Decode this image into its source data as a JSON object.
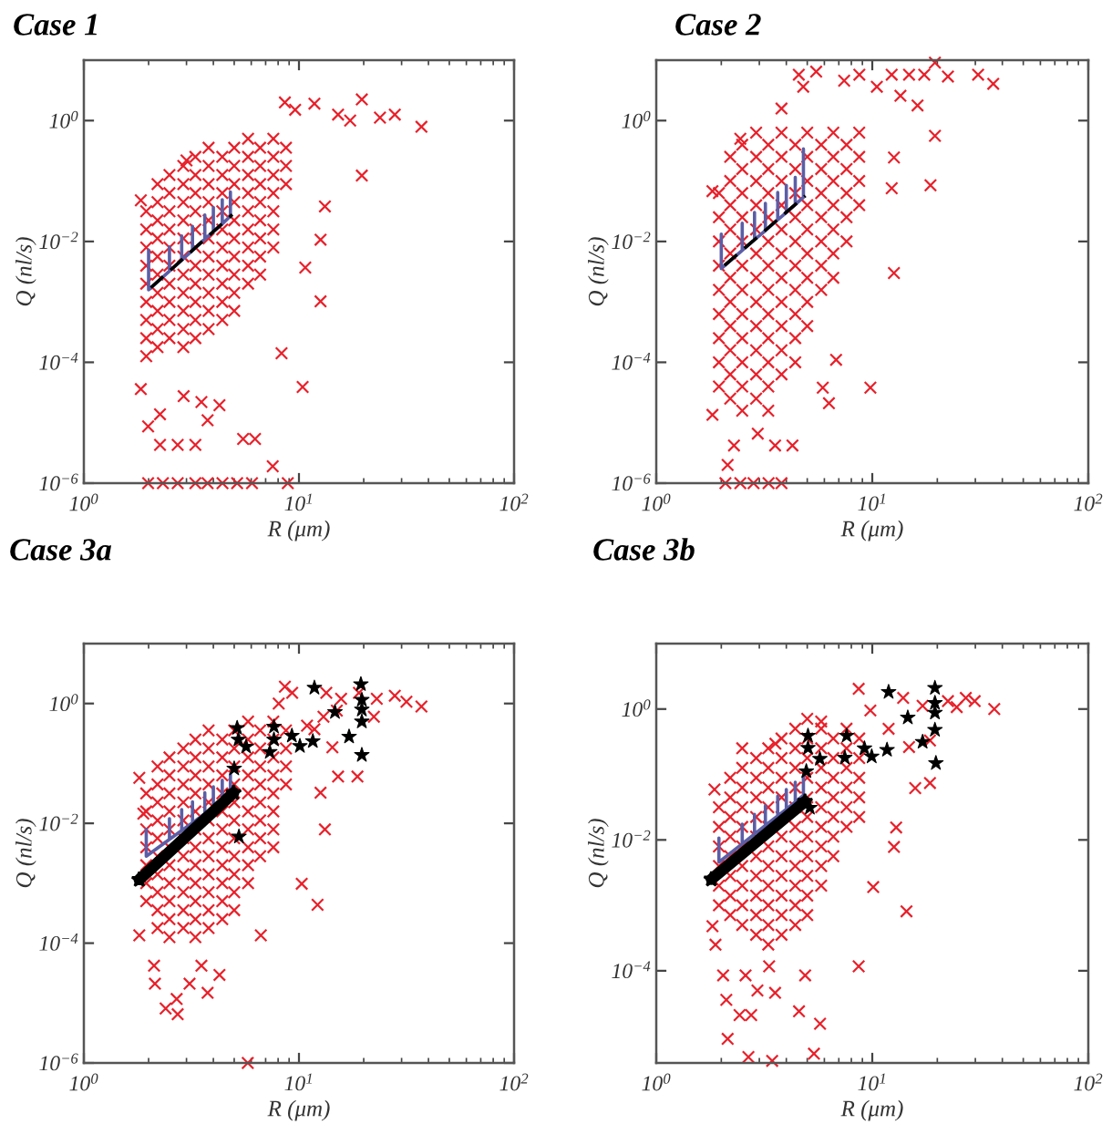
{
  "chart_data": [
    {
      "type": "scatter",
      "title": "Case 1",
      "xlabel": "R (μm)",
      "ylabel": "Q (nl/s)",
      "log": "xy",
      "xlim": [
        1,
        100
      ],
      "ylim": [
        1e-06,
        10
      ],
      "xticks": [
        {
          "value": 1,
          "label": "10$^{0}$"
        },
        {
          "value": 10,
          "label": "10$^{1}$"
        },
        {
          "value": 100,
          "label": "10$^{2}$"
        }
      ],
      "yticks": [
        {
          "value": 1e-06,
          "label": "10$^{−6}$"
        },
        {
          "value": 0.0001,
          "label": "10$^{−4}$"
        },
        {
          "value": 0.01,
          "label": "10$^{−2}$"
        },
        {
          "value": 1,
          "label": "10$^{0}$"
        }
      ],
      "series": [
        {
          "type": "scatter",
          "color": "#e8202a",
          "marker": "cross",
          "x": [
            1.95,
            1.95,
            1.95,
            1.95,
            1.95,
            1.95,
            1.95,
            1.95,
            1.95,
            2.2,
            2.2,
            2.2,
            2.2,
            2.2,
            2.2,
            2.2,
            2.2,
            2.2,
            2.2,
            2.5,
            2.5,
            2.5,
            2.5,
            2.5,
            2.5,
            2.5,
            2.5,
            2.5,
            2.5,
            2.9,
            2.9,
            2.9,
            2.9,
            2.9,
            2.9,
            2.9,
            2.9,
            2.9,
            2.9,
            2.9,
            3.3,
            3.3,
            3.3,
            3.3,
            3.3,
            3.3,
            3.3,
            3.3,
            3.3,
            3.3,
            3.3,
            3.8,
            3.8,
            3.8,
            3.8,
            3.8,
            3.8,
            3.8,
            3.8,
            3.8,
            3.8,
            3.8,
            4.4,
            4.4,
            4.4,
            4.4,
            4.4,
            4.4,
            4.4,
            4.4,
            4.4,
            4.4,
            5.0,
            5.0,
            5.0,
            5.0,
            5.0,
            5.0,
            5.0,
            5.0,
            5.0,
            5.0,
            5.8,
            5.8,
            5.8,
            5.8,
            5.8,
            5.8,
            5.8,
            5.8,
            5.8,
            6.6,
            6.6,
            6.6,
            6.6,
            6.6,
            6.6,
            6.6,
            6.6,
            7.6,
            7.6,
            7.6,
            7.6,
            7.6,
            7.6,
            7.6,
            8.7,
            8.7,
            8.7,
            8.6,
            9.6,
            11.8,
            19.6,
            23.8,
            27.9,
            37.1,
            15.2,
            17.3,
            19.6,
            13.2,
            12.6,
            10.7,
            12.6,
            10.4,
            8.3,
            6.25,
            7.55,
            1.84,
            3.0,
            1.84,
            1.99,
            2.26,
            2.73,
            3.3,
            3.52,
            4.27,
            5.5,
            3.76,
            2.91,
            2.26,
            1.99,
            2.33,
            2.73,
            3.3,
            3.76,
            4.41,
            5.16,
            6.05,
            8.87
          ],
          "values": [
            0.0316,
            0.0158,
            0.00794,
            0.00398,
            0.002,
            0.001,
            0.000501,
            0.000251,
            0.000126,
            0.0891,
            0.0447,
            0.0224,
            0.0112,
            0.00562,
            0.00282,
            0.00141,
            0.000708,
            0.000355,
            0.000178,
            0.126,
            0.0631,
            0.0316,
            0.0158,
            0.00794,
            0.00398,
            0.002,
            0.001,
            0.000501,
            0.000251,
            0.178,
            0.0891,
            0.0447,
            0.0224,
            0.0112,
            0.00562,
            0.00282,
            0.00141,
            0.000708,
            0.000355,
            0.000178,
            0.251,
            0.126,
            0.0631,
            0.0316,
            0.0158,
            0.00794,
            0.00398,
            0.002,
            0.001,
            0.000501,
            0.000251,
            0.355,
            0.178,
            0.0891,
            0.0447,
            0.0224,
            0.0112,
            0.00562,
            0.00282,
            0.00141,
            0.000708,
            0.000355,
            0.251,
            0.126,
            0.0631,
            0.0316,
            0.0158,
            0.00794,
            0.00398,
            0.002,
            0.001,
            0.000501,
            0.355,
            0.178,
            0.0891,
            0.0447,
            0.0224,
            0.0112,
            0.00562,
            0.00282,
            0.00141,
            0.000708,
            0.501,
            0.251,
            0.126,
            0.0631,
            0.0316,
            0.0158,
            0.00794,
            0.00398,
            0.002,
            0.355,
            0.178,
            0.0891,
            0.0447,
            0.0224,
            0.0112,
            0.00562,
            0.00282,
            0.501,
            0.251,
            0.126,
            0.0631,
            0.0316,
            0.0158,
            0.00794,
            0.355,
            0.178,
            0.0891,
            2.0,
            1.51,
            1.91,
            2.24,
            1.12,
            1.26,
            0.79,
            1.26,
            1.0,
            0.123,
            0.038,
            0.0107,
            0.0037,
            0.00102,
            3.9e-05,
            0.000141,
            5.4e-06,
            1.9e-06,
            0.048,
            0.219,
            3.6e-05,
            8.7e-06,
            4.3e-06,
            4.3e-06,
            4.3e-06,
            2.2e-05,
            1.95e-05,
            5.4e-06,
            1.1e-05,
            2.75e-05,
            1.38e-05,
            1e-06,
            1e-06,
            1e-06,
            1e-06,
            1e-06,
            1e-06,
            1e-06,
            1e-06,
            1e-06
          ]
        },
        {
          "type": "line",
          "color": "#5b5ea6",
          "line_style": "solid",
          "x": [
            2.0,
            2.0,
            2.5,
            2.5,
            2.5,
            2.85,
            2.85,
            2.85,
            3.2,
            3.2,
            3.2,
            3.65,
            3.65,
            3.65,
            4.0,
            4.0,
            4.0,
            4.4,
            4.4,
            4.4,
            4.8,
            4.8
          ],
          "values": [
            0.0072,
            0.00158,
            0.00324,
            0.0081,
            0.00324,
            0.0049,
            0.0123,
            0.0049,
            0.0071,
            0.0178,
            0.0071,
            0.011,
            0.0275,
            0.011,
            0.0145,
            0.0363,
            0.0145,
            0.0195,
            0.049,
            0.0195,
            0.0263,
            0.066
          ]
        },
        {
          "type": "line",
          "color": "#000000",
          "line_style": "dashed",
          "x": [
            2.05,
            4.9
          ],
          "values": [
            0.00172,
            0.0279
          ]
        }
      ]
    },
    {
      "type": "scatter",
      "title": "Case 2",
      "xlabel": "R (μm)",
      "ylabel": "Q (nl/s)",
      "log": "xy",
      "xlim": [
        1,
        100
      ],
      "ylim": [
        1e-06,
        10
      ],
      "xticks": [
        {
          "value": 1,
          "label": "10$^{0}$"
        },
        {
          "value": 10,
          "label": "10$^{1}$"
        },
        {
          "value": 100,
          "label": "10$^{2}$"
        }
      ],
      "yticks": [
        {
          "value": 1e-06,
          "label": "10$^{−6}$"
        },
        {
          "value": 0.0001,
          "label": "10$^{−4}$"
        },
        {
          "value": 0.01,
          "label": "10$^{−2}$"
        },
        {
          "value": 1,
          "label": "10$^{0}$"
        }
      ],
      "series": [
        {
          "type": "scatter",
          "color": "#e8202a",
          "marker": "cross",
          "x": [
            1.95,
            1.95,
            1.95,
            1.95,
            1.95,
            1.95,
            1.95,
            1.95,
            1.95,
            2.2,
            2.2,
            2.2,
            2.2,
            2.2,
            2.2,
            2.2,
            2.2,
            2.2,
            2.2,
            2.2,
            2.5,
            2.5,
            2.5,
            2.5,
            2.5,
            2.5,
            2.5,
            2.5,
            2.5,
            2.5,
            2.5,
            2.5,
            2.9,
            2.9,
            2.9,
            2.9,
            2.9,
            2.9,
            2.9,
            2.9,
            2.9,
            2.9,
            2.9,
            2.9,
            3.3,
            3.3,
            3.3,
            3.3,
            3.3,
            3.3,
            3.3,
            3.3,
            3.3,
            3.3,
            3.3,
            3.3,
            3.8,
            3.8,
            3.8,
            3.8,
            3.8,
            3.8,
            3.8,
            3.8,
            3.8,
            3.8,
            3.8,
            4.4,
            4.4,
            4.4,
            4.4,
            4.4,
            4.4,
            4.4,
            4.4,
            4.4,
            4.4,
            5.0,
            5.0,
            5.0,
            5.0,
            5.0,
            5.0,
            5.0,
            5.0,
            5.0,
            5.8,
            5.8,
            5.8,
            5.8,
            5.8,
            5.8,
            5.8,
            6.6,
            6.6,
            6.6,
            6.6,
            6.6,
            6.6,
            6.6,
            7.6,
            7.6,
            7.6,
            7.6,
            7.6,
            8.7,
            8.7,
            8.7,
            8.7,
            4.57,
            5.5,
            4.79,
            3.8,
            7.41,
            8.71,
            12.3,
            14.8,
            17.4,
            19.5,
            22.4,
            30.9,
            36.3,
            10.5,
            13.5,
            16.2,
            19.5,
            18.6,
            12.3,
            12.6,
            12.6,
            9.8,
            5.9,
            6.3,
            6.8,
            2.45,
            1.82,
            1.82,
            2.14,
            2.29,
            2.95,
            3.55,
            4.27,
            2.09,
            2.45,
            2.82,
            3.31,
            3.8
          ],
          "values": [
            0.0631,
            0.0251,
            0.01,
            0.00398,
            0.00158,
            0.000631,
            0.000251,
            0.0001,
            3.98e-05,
            0.251,
            0.1,
            0.0398,
            0.0158,
            0.00631,
            0.00251,
            0.001,
            0.000398,
            0.000158,
            6.31e-05,
            2.51e-05,
            0.398,
            0.158,
            0.0631,
            0.0251,
            0.01,
            0.00398,
            0.00158,
            0.000631,
            0.000251,
            0.0001,
            3.98e-05,
            1.58e-05,
            0.631,
            0.251,
            0.1,
            0.0398,
            0.0158,
            0.00631,
            0.00251,
            0.001,
            0.000398,
            0.000158,
            6.31e-05,
            2.51e-05,
            0.398,
            0.158,
            0.0631,
            0.0251,
            0.01,
            0.00398,
            0.00158,
            0.000631,
            0.000251,
            0.0001,
            3.98e-05,
            1.58e-05,
            0.631,
            0.251,
            0.1,
            0.0398,
            0.0158,
            0.00631,
            0.00251,
            0.001,
            0.000398,
            0.000158,
            6.31e-05,
            0.398,
            0.158,
            0.0631,
            0.0251,
            0.01,
            0.00398,
            0.00158,
            0.000631,
            0.000251,
            0.0001,
            0.631,
            0.251,
            0.1,
            0.0398,
            0.0158,
            0.00631,
            0.00251,
            0.001,
            0.000398,
            0.398,
            0.158,
            0.0631,
            0.0251,
            0.01,
            0.00398,
            0.00158,
            0.631,
            0.251,
            0.1,
            0.0398,
            0.0158,
            0.00631,
            0.00251,
            0.398,
            0.158,
            0.0631,
            0.0251,
            0.01,
            0.631,
            0.251,
            0.1,
            0.0398,
            5.75,
            6.46,
            3.63,
            1.58,
            4.57,
            5.75,
            5.75,
            5.75,
            5.75,
            9.1,
            5.37,
            5.75,
            4.07,
            3.63,
            2.57,
            1.78,
            0.56,
            0.085,
            0.076,
            0.245,
            0.003,
            3.8e-05,
            3.8e-05,
            2.1e-05,
            0.00011,
            0.5,
            0.068,
            1.35e-05,
            2e-06,
            4.2e-06,
            6.6e-06,
            4.2e-06,
            4.2e-06,
            1e-06,
            1e-06,
            1e-06,
            1e-06,
            1e-06
          ]
        },
        {
          "type": "line",
          "color": "#5b5ea6",
          "line_style": "solid",
          "x": [
            2.0,
            2.0,
            2.5,
            2.5,
            2.5,
            2.85,
            2.85,
            2.85,
            3.2,
            3.2,
            3.2,
            3.65,
            3.65,
            3.65,
            4.0,
            4.0,
            4.0,
            4.4,
            4.4,
            4.4,
            4.8,
            4.8
          ],
          "values": [
            0.0132,
            0.00355,
            0.0071,
            0.02,
            0.0071,
            0.0107,
            0.0302,
            0.0107,
            0.0151,
            0.0427,
            0.0151,
            0.0229,
            0.0646,
            0.0229,
            0.0302,
            0.0851,
            0.0302,
            0.0407,
            0.115,
            0.0407,
            0.0537,
            0.339
          ]
        },
        {
          "type": "line",
          "color": "#000000",
          "line_style": "dashed",
          "x": [
            2.07,
            4.9
          ],
          "values": [
            0.004,
            0.057
          ]
        }
      ]
    },
    {
      "type": "scatter",
      "title": "Case 3a",
      "xlabel": "R (μm)",
      "ylabel": "Q (nl/s)",
      "log": "xy",
      "xlim": [
        1,
        100
      ],
      "ylim": [
        1e-06,
        10
      ],
      "xticks": [
        {
          "value": 1,
          "label": "10$^{0}$"
        },
        {
          "value": 10,
          "label": "10$^{1}$"
        },
        {
          "value": 100,
          "label": "10$^{2}$"
        }
      ],
      "yticks": [
        {
          "value": 1e-06,
          "label": "10$^{−6}$"
        },
        {
          "value": 0.0001,
          "label": "10$^{−4}$"
        },
        {
          "value": 0.01,
          "label": "10$^{−2}$"
        },
        {
          "value": 1,
          "label": "10$^{0}$"
        }
      ],
      "series": [
        {
          "type": "scatter",
          "color": "#e8202a",
          "marker": "cross",
          "x": [
            1.95,
            1.95,
            1.95,
            1.95,
            1.95,
            1.95,
            1.95,
            2.2,
            2.2,
            2.2,
            2.2,
            2.2,
            2.2,
            2.2,
            2.2,
            2.2,
            2.2,
            2.5,
            2.5,
            2.5,
            2.5,
            2.5,
            2.5,
            2.5,
            2.5,
            2.5,
            2.5,
            2.5,
            2.9,
            2.9,
            2.9,
            2.9,
            2.9,
            2.9,
            2.9,
            2.9,
            2.9,
            2.9,
            2.9,
            3.3,
            3.3,
            3.3,
            3.3,
            3.3,
            3.3,
            3.3,
            3.3,
            3.3,
            3.3,
            3.3,
            3.3,
            3.8,
            3.8,
            3.8,
            3.8,
            3.8,
            3.8,
            3.8,
            3.8,
            3.8,
            3.8,
            3.8,
            3.8,
            4.4,
            4.4,
            4.4,
            4.4,
            4.4,
            4.4,
            4.4,
            4.4,
            4.4,
            4.4,
            4.4,
            5.0,
            5.0,
            5.0,
            5.0,
            5.0,
            5.0,
            5.0,
            5.0,
            5.0,
            5.0,
            5.0,
            5.8,
            5.8,
            5.8,
            5.8,
            5.8,
            5.8,
            5.8,
            5.8,
            5.8,
            5.8,
            6.6,
            6.6,
            6.6,
            6.6,
            6.6,
            6.6,
            6.6,
            6.6,
            7.6,
            7.6,
            7.6,
            7.6,
            7.6,
            7.6,
            7.6,
            7.6,
            8.7,
            8.7,
            8.7,
            8.7,
            1.81,
            1.89,
            1.81,
            2.12,
            2.14,
            2.4,
            2.7,
            2.73,
            3.1,
            3.76,
            4.27,
            3.52,
            5.78,
            6.65,
            12.2,
            10.3,
            13.2,
            12.6,
            15.2,
            18.7,
            8.6,
            9.3,
            13.4,
            15.7,
            19.0,
            23.0,
            27.9,
            37.1,
            31.6,
            8.05,
            10.9,
            13.0,
            15.0,
            22.3,
            14.3,
            11.8
          ],
          "values": [
            0.0316,
            0.0158,
            0.00794,
            0.00398,
            0.002,
            0.001,
            0.000501,
            0.0891,
            0.0447,
            0.0224,
            0.0112,
            0.00562,
            0.00282,
            0.00141,
            0.000708,
            0.000355,
            0.000178,
            0.126,
            0.0631,
            0.0316,
            0.0158,
            0.00794,
            0.00398,
            0.002,
            0.001,
            0.000501,
            0.000251,
            0.000126,
            0.178,
            0.0891,
            0.0447,
            0.0224,
            0.0112,
            0.00562,
            0.00282,
            0.00141,
            0.000708,
            0.000355,
            0.000178,
            0.251,
            0.126,
            0.0631,
            0.0316,
            0.0158,
            0.00794,
            0.00398,
            0.002,
            0.001,
            0.000501,
            0.000251,
            0.000126,
            0.355,
            0.178,
            0.0891,
            0.0447,
            0.0224,
            0.0112,
            0.00562,
            0.00282,
            0.00141,
            0.000708,
            0.000355,
            0.000178,
            0.251,
            0.126,
            0.0631,
            0.0316,
            0.0158,
            0.00794,
            0.00398,
            0.002,
            0.001,
            0.000501,
            0.000251,
            0.355,
            0.178,
            0.0891,
            0.0447,
            0.0224,
            0.0112,
            0.00562,
            0.00282,
            0.00141,
            0.000708,
            0.000355,
            0.501,
            0.251,
            0.126,
            0.0631,
            0.0316,
            0.0158,
            0.00794,
            0.00398,
            0.002,
            0.001,
            0.355,
            0.178,
            0.0891,
            0.0447,
            0.0224,
            0.0112,
            0.00562,
            0.00282,
            0.501,
            0.251,
            0.126,
            0.0631,
            0.0316,
            0.0158,
            0.00794,
            0.00398,
            0.355,
            0.178,
            0.0891,
            0.0447,
            0.0575,
            0.0145,
            0.000135,
            4.2e-05,
            2.1e-05,
            8.1e-06,
            1.17e-05,
            6.5e-06,
            2.1e-05,
            1.48e-05,
            2.95e-05,
            4.2e-05,
            1e-06,
            0.000135,
            0.000437,
            0.00098,
            0.0079,
            0.0324,
            0.0603,
            0.0603,
            1.91,
            1.51,
            1.51,
            1.2,
            1.51,
            1.2,
            1.35,
            0.89,
            1.07,
            1.0,
            0.427,
            0.6,
            0.76,
            0.6,
            0.186,
            0.372
          ]
        },
        {
          "type": "line",
          "color": "#5b5ea6",
          "line_style": "solid",
          "x": [
            1.95,
            1.95,
            2.5,
            2.5,
            2.5,
            2.85,
            2.85,
            2.85,
            3.2,
            3.2,
            3.2,
            3.65,
            3.65,
            3.65,
            4.0,
            4.0,
            4.0,
            4.4,
            4.4,
            4.4,
            4.8,
            4.8
          ],
          "values": [
            0.0079,
            0.00282,
            0.0054,
            0.012,
            0.0054,
            0.0076,
            0.017,
            0.0076,
            0.0102,
            0.0229,
            0.0102,
            0.0145,
            0.0324,
            0.0145,
            0.0182,
            0.0407,
            0.0182,
            0.0234,
            0.0525,
            0.0234,
            0.0295,
            0.066
          ]
        },
        {
          "type": "line",
          "color": "#000000",
          "line_style": "solid",
          "marker": "star",
          "x": [
            1.81,
            4.97
          ],
          "values": [
            0.00115,
            0.0324
          ]
        },
        {
          "type": "scatter",
          "color": "#000000",
          "marker": "star",
          "x": [
            5.16,
            5.23,
            5.68,
            7.65,
            7.65,
            7.32,
            9.27,
            10.1,
            11.6,
            11.8,
            14.7,
            17.1,
            19.4,
            19.6,
            19.6,
            19.6,
            19.6,
            5.0,
            5.26
          ],
          "values": [
            0.39,
            0.25,
            0.19,
            0.41,
            0.25,
            0.155,
            0.29,
            0.195,
            0.235,
            1.83,
            0.72,
            0.28,
            2.1,
            1.15,
            0.79,
            0.5,
            0.138,
            0.082,
            0.006
          ]
        }
      ]
    },
    {
      "type": "scatter",
      "title": "Case 3b",
      "xlabel": "R (μm)",
      "ylabel": "Q (nl/s)",
      "log": "xy",
      "xlim": [
        1,
        100
      ],
      "ylim": [
        3.9e-06,
        10
      ],
      "xticks": [
        {
          "value": 1,
          "label": "10$^{0}$"
        },
        {
          "value": 10,
          "label": "10$^{1}$"
        },
        {
          "value": 100,
          "label": "10$^{2}$"
        }
      ],
      "yticks": [
        {
          "value": 0.0001,
          "label": "10$^{−4}$"
        },
        {
          "value": 0.01,
          "label": "10$^{−2}$"
        },
        {
          "value": 1,
          "label": "10$^{0}$"
        }
      ],
      "series": [
        {
          "type": "scatter",
          "color": "#e8202a",
          "marker": "cross",
          "x": [
            1.95,
            1.95,
            1.95,
            1.95,
            1.95,
            1.95,
            2.2,
            2.2,
            2.2,
            2.2,
            2.2,
            2.2,
            2.2,
            2.2,
            2.5,
            2.5,
            2.5,
            2.5,
            2.5,
            2.5,
            2.5,
            2.5,
            2.5,
            2.5,
            2.9,
            2.9,
            2.9,
            2.9,
            2.9,
            2.9,
            2.9,
            2.9,
            2.9,
            2.9,
            3.3,
            3.3,
            3.3,
            3.3,
            3.3,
            3.3,
            3.3,
            3.3,
            3.3,
            3.3,
            3.3,
            3.8,
            3.8,
            3.8,
            3.8,
            3.8,
            3.8,
            3.8,
            3.8,
            3.8,
            3.8,
            3.8,
            4.4,
            4.4,
            4.4,
            4.4,
            4.4,
            4.4,
            4.4,
            4.4,
            4.4,
            4.4,
            4.4,
            5.0,
            5.0,
            5.0,
            5.0,
            5.0,
            5.0,
            5.0,
            5.0,
            5.0,
            5.0,
            5.0,
            5.8,
            5.8,
            5.8,
            5.8,
            5.8,
            5.8,
            5.8,
            5.8,
            5.8,
            6.6,
            6.6,
            6.6,
            6.6,
            6.6,
            6.6,
            6.6,
            7.6,
            7.6,
            7.6,
            7.6,
            7.6,
            7.6,
            8.7,
            8.7,
            8.7,
            8.7,
            8.7,
            1.86,
            1.82,
            1.88,
            2.04,
            2.11,
            2.59,
            2.43,
            2.75,
            2.94,
            3.55,
            3.33,
            2.67,
            3.44,
            5.37,
            5.73,
            4.58,
            4.89,
            2.14,
            8.65,
            10.1,
            14.4,
            12.6,
            12.9,
            18.5,
            15.8,
            8.65,
            9.8,
            13.9,
            17.1,
            22.4,
            27.1,
            29.8,
            36.7,
            24.6,
            11.9,
            14.8,
            18.5,
            5.8,
            3.56
          ],
          "values": [
            0.0316,
            0.0158,
            0.00794,
            0.00398,
            0.002,
            0.001,
            0.0891,
            0.0447,
            0.0224,
            0.0112,
            0.00562,
            0.00282,
            0.00141,
            0.000708,
            0.251,
            0.126,
            0.0631,
            0.0316,
            0.0158,
            0.00794,
            0.00398,
            0.002,
            0.001,
            0.000501,
            0.178,
            0.0891,
            0.0447,
            0.0224,
            0.0112,
            0.00562,
            0.00282,
            0.00141,
            0.000708,
            0.000355,
            0.251,
            0.126,
            0.0631,
            0.0316,
            0.0158,
            0.00794,
            0.00398,
            0.002,
            0.001,
            0.000501,
            0.000251,
            0.355,
            0.178,
            0.0891,
            0.0447,
            0.0224,
            0.0112,
            0.00562,
            0.00282,
            0.00141,
            0.000708,
            0.000355,
            0.501,
            0.251,
            0.126,
            0.0631,
            0.0316,
            0.0158,
            0.00794,
            0.00398,
            0.002,
            0.001,
            0.000501,
            0.708,
            0.355,
            0.178,
            0.0891,
            0.0447,
            0.0224,
            0.0112,
            0.00562,
            0.00282,
            0.00141,
            0.000708,
            0.501,
            0.251,
            0.126,
            0.0631,
            0.0316,
            0.0158,
            0.00794,
            0.00398,
            0.002,
            0.355,
            0.178,
            0.0891,
            0.0447,
            0.0224,
            0.0112,
            0.00562,
            0.501,
            0.251,
            0.126,
            0.0631,
            0.0316,
            0.0158,
            0.355,
            0.178,
            0.0891,
            0.0447,
            0.0224,
            0.059,
            0.00048,
            0.00025,
            8.5e-05,
            3.6e-05,
            8.5e-05,
            2.1e-05,
            2.1e-05,
            5e-05,
            4.6e-05,
            0.000117,
            4.8e-06,
            4.2e-06,
            5.4e-06,
            1.55e-05,
            2.4e-05,
            8.5e-05,
            9.1e-06,
            0.000117,
            0.0019,
            0.00081,
            0.0078,
            0.0155,
            0.074,
            0.062,
            2.04,
            0.95,
            1.48,
            1.12,
            1.32,
            1.48,
            1.32,
            1.0,
            1.07,
            0.5,
            0.263,
            0.331,
            0.646,
            0.295
          ]
        },
        {
          "type": "line",
          "color": "#5b5ea6",
          "line_style": "solid",
          "x": [
            1.95,
            1.95,
            2.5,
            2.5,
            2.5,
            2.85,
            2.85,
            2.85,
            3.2,
            3.2,
            3.2,
            3.65,
            3.65,
            3.65,
            4.0,
            4.0,
            4.0,
            4.4,
            4.4,
            4.4,
            4.8,
            4.8
          ],
          "values": [
            0.0107,
            0.00457,
            0.0087,
            0.0174,
            0.0087,
            0.0123,
            0.0245,
            0.0123,
            0.0166,
            0.0331,
            0.0166,
            0.0234,
            0.0468,
            0.0234,
            0.0295,
            0.0589,
            0.0295,
            0.038,
            0.0759,
            0.038,
            0.0479,
            0.0955
          ]
        },
        {
          "type": "line",
          "color": "#000000",
          "line_style": "solid",
          "marker": "star",
          "x": [
            1.8,
            4.88
          ],
          "values": [
            0.0025,
            0.0385
          ]
        },
        {
          "type": "scatter",
          "color": "#000000",
          "marker": "star",
          "x": [
            5.04,
            5.04,
            5.72,
            7.46,
            7.61,
            9.2,
            9.94,
            11.7,
            11.9,
            14.6,
            17.1,
            19.5,
            19.5,
            19.5,
            19.5,
            19.7,
            4.95,
            5.14
          ],
          "values": [
            0.39,
            0.254,
            0.173,
            0.18,
            0.39,
            0.25,
            0.188,
            0.238,
            1.82,
            0.74,
            0.315,
            2.1,
            1.24,
            0.88,
            0.48,
            0.149,
            0.112,
            0.031
          ]
        }
      ]
    }
  ]
}
